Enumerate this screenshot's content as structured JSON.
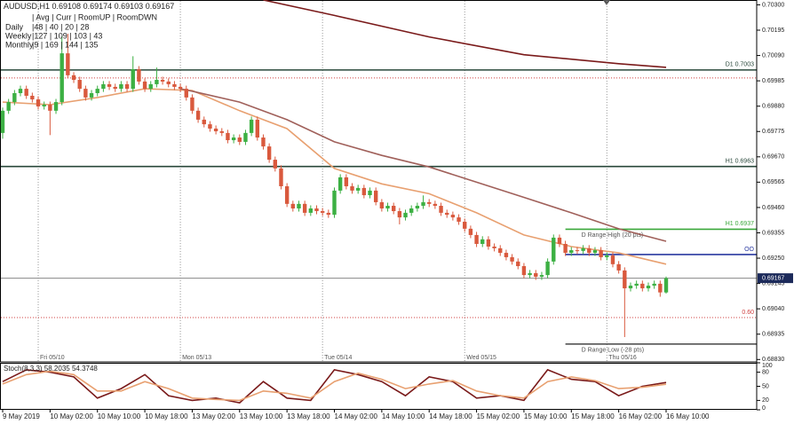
{
  "info": {
    "symbol": "AUDUSD,H1",
    "header": "| Avg | Curr | RoomUP | RoomDWN",
    "rows": [
      {
        "label": "Daily",
        "text": "|48 | 40 | 20 | 28"
      },
      {
        "label": "Weekly",
        "text": "|127 | 109 | 103 | 43"
      },
      {
        "label": "Monthly",
        "text": "|9 | 169 | 144 | 135"
      }
    ]
  },
  "chart_data": [
    {
      "type": "candlestick",
      "up_color": "#3cb043",
      "down_color": "#d9593d",
      "categories": [
        "9 May 2019",
        null,
        null,
        null,
        null,
        null,
        null,
        null,
        "10 May 02:00",
        null,
        null,
        null,
        null,
        null,
        null,
        null,
        "10 May 10:00",
        null,
        null,
        null,
        null,
        null,
        null,
        null,
        "10 May 18:00",
        null,
        null,
        null,
        null,
        null,
        null,
        null,
        "13 May 02:00",
        null,
        null,
        null,
        null,
        null,
        null,
        null,
        "13 May 10:00",
        null,
        null,
        null,
        null,
        null,
        null,
        null,
        "13 May 18:00",
        null,
        null,
        null,
        null,
        null,
        null,
        null,
        "14 May 02:00",
        null,
        null,
        null,
        null,
        null,
        null,
        null,
        "14 May 10:00",
        null,
        null,
        null,
        null,
        null,
        null,
        null,
        "14 May 18:00",
        null,
        null,
        null,
        null,
        null,
        null,
        null,
        "15 May 02:00",
        null,
        null,
        null,
        null,
        null,
        null,
        null,
        "15 May 10:00",
        null,
        null,
        null,
        null,
        null,
        null,
        null,
        "15 May 18:00",
        null,
        null,
        null,
        null,
        null,
        null,
        null,
        "16 May 02:00",
        null,
        null,
        null,
        null,
        null,
        null,
        null,
        "16 May 10:00"
      ],
      "open": [
        0.69769,
        0.69861,
        0.69897,
        0.69934,
        0.69952,
        0.69923,
        0.69908,
        0.69879,
        0.69886,
        0.69861,
        0.69897,
        0.70099,
        0.70008,
        0.69989,
        0.69952,
        0.69916,
        0.69934,
        0.69952,
        0.69971,
        0.6996,
        0.69952,
        0.69971,
        0.69952,
        0.70033,
        0.69982,
        0.69952,
        0.69971,
        0.69989,
        0.69982,
        0.69971,
        0.6996,
        0.69952,
        0.69916,
        0.69861,
        0.69824,
        0.69805,
        0.69787,
        0.69776,
        0.69769,
        0.69739,
        0.6975,
        0.69732,
        0.69769,
        0.69824,
        0.6975,
        0.69713,
        0.69658,
        0.69622,
        0.69548,
        0.69475,
        0.69456,
        0.69475,
        0.69438,
        0.69456,
        0.69445,
        0.69438,
        0.6943,
        0.6953,
        0.69585,
        0.69548,
        0.6953,
        0.69541,
        0.69511,
        0.6953,
        0.69482,
        0.69456,
        0.69467,
        0.69445,
        0.69419,
        0.69438,
        0.69456,
        0.69467,
        0.69482,
        0.69475,
        0.69467,
        0.69438,
        0.6943,
        0.69419,
        0.69401,
        0.69372,
        0.69346,
        0.69309,
        0.69328,
        0.69298,
        0.69291,
        0.69272,
        0.69254,
        0.69236,
        0.69217,
        0.6918,
        0.69188,
        0.69173,
        0.6918,
        0.69236,
        0.69335,
        0.69309,
        0.69272,
        0.69283,
        0.6928,
        0.69291,
        0.69272,
        0.69283,
        0.69254,
        0.69261,
        0.69225,
        0.69199,
        0.69125,
        0.69136,
        0.69144,
        0.69125,
        0.69136,
        0.69144,
        0.69108
      ],
      "high": [
        0.69874,
        0.6991,
        0.69947,
        0.69965,
        0.69965,
        0.69936,
        0.69921,
        0.69899,
        0.69899,
        0.6991,
        0.7017,
        0.7018,
        0.70021,
        0.70002,
        0.69965,
        0.69947,
        0.69965,
        0.69984,
        0.69984,
        0.69973,
        0.69984,
        0.69984,
        0.70087,
        0.70046,
        0.69995,
        0.69984,
        0.7004,
        0.70002,
        0.69995,
        0.69984,
        0.69973,
        0.69965,
        0.69929,
        0.69874,
        0.69837,
        0.69818,
        0.698,
        0.69789,
        0.69782,
        0.69763,
        0.69763,
        0.69782,
        0.69837,
        0.69837,
        0.69763,
        0.69726,
        0.69671,
        0.69635,
        0.69561,
        0.69488,
        0.69488,
        0.69488,
        0.69469,
        0.69469,
        0.69458,
        0.69451,
        0.69543,
        0.69598,
        0.69598,
        0.69561,
        0.69554,
        0.69554,
        0.69543,
        0.69543,
        0.69495,
        0.6948,
        0.6948,
        0.69458,
        0.69451,
        0.69469,
        0.6948,
        0.6951,
        0.69495,
        0.69488,
        0.6948,
        0.69451,
        0.69443,
        0.69432,
        0.69414,
        0.69385,
        0.69359,
        0.69341,
        0.69341,
        0.69311,
        0.69304,
        0.69285,
        0.69267,
        0.69249,
        0.6923,
        0.69201,
        0.69201,
        0.69193,
        0.69249,
        0.69348,
        0.69348,
        0.69322,
        0.69296,
        0.69296,
        0.69304,
        0.69304,
        0.69296,
        0.69296,
        0.69274,
        0.69274,
        0.69238,
        0.69212,
        0.69149,
        0.69157,
        0.69157,
        0.69149,
        0.69157,
        0.69157,
        0.69174
      ],
      "low": [
        0.69745,
        0.69848,
        0.69884,
        0.69921,
        0.6991,
        0.69895,
        0.69866,
        0.69866,
        0.6976,
        0.69848,
        0.69884,
        0.69995,
        0.69976,
        0.69939,
        0.69903,
        0.69903,
        0.69921,
        0.69939,
        0.69947,
        0.69939,
        0.69939,
        0.69939,
        0.69939,
        0.69969,
        0.69939,
        0.69939,
        0.69958,
        0.69969,
        0.69958,
        0.69947,
        0.69939,
        0.69903,
        0.69848,
        0.69811,
        0.69792,
        0.69774,
        0.69763,
        0.69756,
        0.69726,
        0.69726,
        0.69719,
        0.69719,
        0.69756,
        0.69737,
        0.697,
        0.69645,
        0.69609,
        0.69535,
        0.69462,
        0.69443,
        0.69443,
        0.69425,
        0.69425,
        0.69432,
        0.69425,
        0.69417,
        0.69417,
        0.69517,
        0.69535,
        0.69517,
        0.69517,
        0.69498,
        0.69498,
        0.69469,
        0.69443,
        0.69443,
        0.69432,
        0.6939,
        0.69406,
        0.69425,
        0.69443,
        0.69454,
        0.69462,
        0.69454,
        0.69425,
        0.69417,
        0.69406,
        0.69388,
        0.69359,
        0.69333,
        0.69296,
        0.69296,
        0.69285,
        0.69278,
        0.69259,
        0.69241,
        0.69223,
        0.69204,
        0.69167,
        0.69167,
        0.6916,
        0.6916,
        0.69167,
        0.69223,
        0.69296,
        0.69259,
        0.69259,
        0.69267,
        0.69267,
        0.69259,
        0.69259,
        0.69241,
        0.69241,
        0.69212,
        0.69186,
        0.68923,
        0.69112,
        0.69123,
        0.69112,
        0.69112,
        0.69123,
        0.6909,
        0.69103
      ],
      "close": [
        0.69861,
        0.69897,
        0.69934,
        0.69952,
        0.69923,
        0.69908,
        0.69879,
        0.69886,
        0.69861,
        0.69897,
        0.70099,
        0.70008,
        0.69989,
        0.69952,
        0.69916,
        0.69934,
        0.69952,
        0.69971,
        0.6996,
        0.69952,
        0.69971,
        0.69952,
        0.70033,
        0.69982,
        0.69952,
        0.69971,
        0.69989,
        0.69982,
        0.69971,
        0.6996,
        0.69952,
        0.69916,
        0.69861,
        0.69824,
        0.69805,
        0.69787,
        0.69776,
        0.69769,
        0.69739,
        0.6975,
        0.69732,
        0.69769,
        0.69824,
        0.6975,
        0.69713,
        0.69658,
        0.69622,
        0.69548,
        0.69475,
        0.69456,
        0.69475,
        0.69438,
        0.69456,
        0.69445,
        0.69438,
        0.6943,
        0.6953,
        0.69585,
        0.69548,
        0.6953,
        0.69541,
        0.69511,
        0.6953,
        0.69482,
        0.69456,
        0.69467,
        0.69445,
        0.69419,
        0.69438,
        0.69456,
        0.69467,
        0.69482,
        0.69475,
        0.69467,
        0.69438,
        0.6943,
        0.69419,
        0.69401,
        0.69372,
        0.69346,
        0.69309,
        0.69328,
        0.69298,
        0.69291,
        0.69272,
        0.69254,
        0.69236,
        0.69217,
        0.6918,
        0.69188,
        0.69173,
        0.6918,
        0.69236,
        0.69335,
        0.69309,
        0.69272,
        0.69283,
        0.6928,
        0.69291,
        0.69272,
        0.69283,
        0.69254,
        0.69261,
        0.69225,
        0.69199,
        0.69125,
        0.69136,
        0.69144,
        0.69125,
        0.69136,
        0.69144,
        0.69108,
        0.69167
      ],
      "overlays": [
        {
          "color": "#e8a070",
          "x": [
            0,
            8,
            16,
            24,
            32,
            40,
            48,
            56,
            64,
            72,
            80,
            88,
            96,
            104,
            112
          ],
          "values": [
            0.69897,
            0.69886,
            0.69916,
            0.69952,
            0.69945,
            0.69861,
            0.69787,
            0.69622,
            0.69558,
            0.69517,
            0.69438,
            0.69346,
            0.69298,
            0.69272,
            0.69225
          ]
        },
        {
          "color": "#a0605a",
          "x": [
            30,
            32,
            40,
            48,
            56,
            64,
            72,
            80,
            88,
            96,
            104,
            112
          ],
          "values": [
            0.69952,
            0.69942,
            0.69897,
            0.69824,
            0.69732,
            0.69676,
            0.69628,
            0.69565,
            0.69502,
            0.69438,
            0.69372,
            0.6932
          ]
        },
        {
          "color": "#7a1a1a",
          "x": [
            44,
            56,
            72,
            88,
            104,
            112
          ],
          "values": [
            0.7032,
            0.70256,
            0.70167,
            0.70093,
            0.70056,
            0.70041
          ]
        }
      ],
      "levels": [
        {
          "value": 0.7003,
          "color": "#28473a",
          "label": "D1 0.7003"
        },
        {
          "value": 0.69997,
          "color": "#d04040",
          "dash": true
        },
        {
          "value": 0.6963,
          "color": "#28473a",
          "label": "H1 0.6963"
        },
        {
          "value": 0.6937,
          "color": "#3aa83a",
          "from": 95,
          "label": "H1 0.6937",
          "note": "D Range High (20 pts)"
        },
        {
          "value": 0.69265,
          "color": "#2838a0",
          "from": 95,
          "label": "OO"
        },
        {
          "value": 0.69004,
          "color": "#d04040",
          "dash": true,
          "label": "0.60"
        },
        {
          "value": 0.68894,
          "color": "#444444",
          "from": 95,
          "note": "D Range Low (-28 pts)"
        }
      ],
      "separators": [
        {
          "x": 6,
          "label": "Fri 05/10"
        },
        {
          "x": 30,
          "label": "Mon 05/13"
        },
        {
          "x": 54,
          "label": "Tue 05/14"
        },
        {
          "x": 78,
          "label": "Wed 05/15"
        },
        {
          "x": 102,
          "label": "Thu 05/16"
        }
      ],
      "ylim": [
        0.6882,
        0.7032
      ],
      "yticks": [
        {
          "value": 0.703,
          "label": "0.70300"
        },
        0.70195,
        {
          "value": 0.7009,
          "label": "0.70090"
        },
        0.69985,
        {
          "value": 0.6988,
          "label": "0.69880"
        },
        0.69775,
        {
          "value": 0.6967,
          "label": "0.69670"
        },
        0.69565,
        {
          "value": 0.6946,
          "label": "0.69460"
        },
        0.69355,
        {
          "value": 0.6925,
          "label": "0.69250"
        },
        0.69145,
        {
          "value": 0.6904,
          "label": "0.69040"
        },
        0.68935,
        {
          "value": 0.6883,
          "label": "0.68830"
        }
      ],
      "grid": false
    },
    {
      "type": "line",
      "title": "Stoch(8,3,3) 58.2035 54.3748",
      "series": [
        {
          "color": "#7a1a1a",
          "x": [
            0,
            4,
            8,
            12,
            16,
            20,
            24,
            28,
            32,
            36,
            40,
            44,
            48,
            52,
            56,
            60,
            64,
            68,
            72,
            76,
            80,
            84,
            88,
            92,
            96,
            100,
            104,
            108,
            112
          ],
          "values": [
            60,
            85,
            80,
            70,
            25,
            45,
            75,
            30,
            20,
            25,
            15,
            60,
            25,
            20,
            85,
            75,
            60,
            30,
            70,
            60,
            25,
            30,
            20,
            85,
            65,
            60,
            30,
            50,
            58.2035
          ]
        },
        {
          "color": "#e8a070",
          "x": [
            0,
            4,
            8,
            12,
            16,
            20,
            24,
            28,
            32,
            36,
            40,
            44,
            48,
            52,
            56,
            60,
            64,
            68,
            72,
            76,
            80,
            84,
            88,
            92,
            96,
            100,
            104,
            108,
            112
          ],
          "values": [
            55,
            75,
            82,
            75,
            40,
            40,
            60,
            45,
            25,
            22,
            20,
            40,
            35,
            25,
            60,
            78,
            65,
            45,
            55,
            62,
            40,
            30,
            25,
            60,
            70,
            62,
            45,
            48,
            54.3748
          ]
        }
      ],
      "ylim": [
        0,
        100
      ],
      "yticks": [
        100,
        80,
        50,
        20,
        0
      ]
    }
  ]
}
